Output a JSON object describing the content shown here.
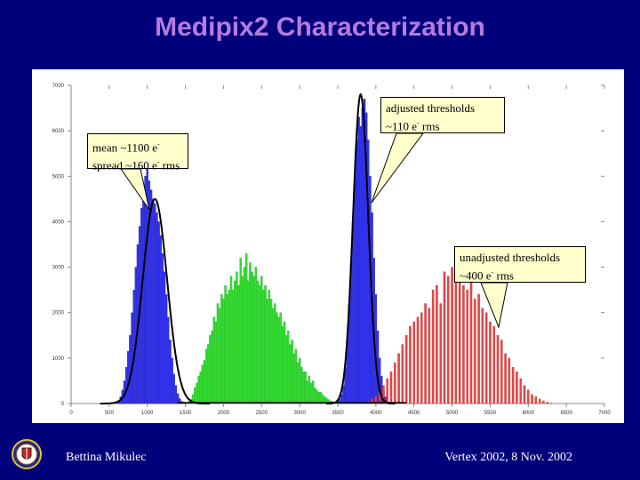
{
  "slide": {
    "title": "Medipix2 Characterization",
    "footer_left": "Bettina Mikulec",
    "footer_right": "Vertex 2002, 8 Nov. 2002"
  },
  "callouts": {
    "mean": {
      "line1": "mean ~1100 e",
      "line2_a": "spread ~160 e",
      "line2_b": " rms"
    },
    "adjusted": {
      "line1": "adjusted thresholds",
      "line2_a": "~110 e",
      "line2_b": " rms"
    },
    "unadjusted": {
      "line1": "unadjusted thresholds",
      "line2_a": "~400 e",
      "line2_b": " rms"
    },
    "minus_sign": "-"
  },
  "chart_data": {
    "type": "bar",
    "title": "",
    "xlabel": "",
    "ylabel": "",
    "xlim": [
      0,
      7000
    ],
    "ylim": [
      0,
      7000
    ],
    "xticks": [
      "0",
      "500",
      "1000",
      "1500",
      "2000",
      "2500",
      "3000",
      "3500",
      "4000",
      "4500",
      "5000",
      "5500",
      "6000",
      "6500",
      "7000"
    ],
    "yticks": [
      "0",
      "1000",
      "2000",
      "3000",
      "4000",
      "5000",
      "6000",
      "7000"
    ],
    "series": [
      {
        "color": "#3333ee",
        "x": [
          600,
          625,
          650,
          675,
          700,
          725,
          750,
          775,
          800,
          825,
          850,
          875,
          900,
          925,
          950,
          975,
          1000,
          1025,
          1050,
          1075,
          1100,
          1125,
          1150,
          1175,
          1200,
          1225,
          1250,
          1275,
          1300,
          1325,
          1350,
          1375,
          1400,
          1425,
          1450,
          1475,
          1500
        ],
        "values": [
          20,
          60,
          150,
          300,
          500,
          800,
          1150,
          1500,
          2000,
          2500,
          3000,
          3500,
          3900,
          4300,
          4700,
          5000,
          5200,
          4900,
          4700,
          4500,
          4400,
          4200,
          4000,
          3700,
          3300,
          2900,
          2400,
          1900,
          1400,
          1000,
          650,
          400,
          220,
          110,
          50,
          20,
          5
        ]
      },
      {
        "color": "#33dd33",
        "x": [
          1550,
          1575,
          1600,
          1625,
          1650,
          1675,
          1700,
          1725,
          1750,
          1775,
          1800,
          1825,
          1850,
          1875,
          1900,
          1925,
          1950,
          1975,
          2000,
          2025,
          2050,
          2075,
          2100,
          2125,
          2150,
          2175,
          2200,
          2225,
          2250,
          2275,
          2300,
          2325,
          2350,
          2375,
          2400,
          2425,
          2450,
          2475,
          2500,
          2525,
          2550,
          2575,
          2600,
          2625,
          2650,
          2675,
          2700,
          2725,
          2750,
          2775,
          2800,
          2825,
          2850,
          2875,
          2900,
          2925,
          2950,
          2975,
          3000,
          3025,
          3050,
          3075,
          3100,
          3125,
          3150,
          3175,
          3200,
          3225,
          3250,
          3275,
          3300,
          3325,
          3350,
          3375,
          3400,
          3425,
          3450,
          3475,
          3500
        ],
        "values": [
          50,
          100,
          200,
          350,
          450,
          600,
          700,
          850,
          950,
          1200,
          1300,
          1500,
          1600,
          1900,
          1800,
          2200,
          2100,
          2400,
          2300,
          2600,
          2400,
          2500,
          2800,
          2500,
          2700,
          2900,
          2600,
          3200,
          2800,
          3000,
          3300,
          2700,
          3100,
          2900,
          2800,
          3000,
          2700,
          2600,
          2800,
          2500,
          2600,
          2300,
          2500,
          2300,
          2100,
          2200,
          2000,
          1900,
          2000,
          1700,
          1800,
          1500,
          1600,
          1300,
          1400,
          1100,
          1200,
          900,
          1000,
          800,
          700,
          700,
          500,
          600,
          450,
          500,
          350,
          300,
          250,
          250,
          200,
          150,
          120,
          90,
          60,
          50,
          30,
          20,
          10
        ]
      },
      {
        "color": "#3333ee",
        "x": [
          3500,
          3525,
          3550,
          3575,
          3600,
          3625,
          3650,
          3675,
          3700,
          3725,
          3750,
          3775,
          3800,
          3825,
          3850,
          3875,
          3900,
          3925,
          3950,
          3975,
          4000,
          4025,
          4050,
          4075,
          4100,
          4125,
          4150,
          4175,
          4200
        ],
        "values": [
          50,
          100,
          200,
          400,
          800,
          1400,
          2200,
          3100,
          4000,
          5000,
          5800,
          6300,
          6100,
          6500,
          6700,
          6400,
          5800,
          5000,
          4200,
          3200,
          2400,
          1600,
          1000,
          600,
          300,
          150,
          70,
          30,
          10
        ]
      },
      {
        "color": "#ee4444",
        "x": [
          3900,
          3950,
          4000,
          4050,
          4100,
          4150,
          4200,
          4250,
          4300,
          4350,
          4400,
          4450,
          4500,
          4550,
          4600,
          4650,
          4700,
          4750,
          4800,
          4850,
          4900,
          4950,
          5000,
          5050,
          5100,
          5150,
          5200,
          5250,
          5300,
          5350,
          5400,
          5450,
          5500,
          5550,
          5600,
          5650,
          5700,
          5750,
          5800,
          5850,
          5900,
          5950,
          6000,
          6050,
          6100,
          6150,
          6200,
          6250,
          6300
        ],
        "values": [
          50,
          100,
          150,
          250,
          400,
          550,
          700,
          900,
          1100,
          1300,
          1500,
          1700,
          1800,
          1900,
          2000,
          2200,
          2100,
          2500,
          2600,
          2200,
          2900,
          2800,
          3000,
          2700,
          2900,
          2600,
          2500,
          2800,
          2300,
          2400,
          2100,
          2000,
          1800,
          1700,
          1500,
          1400,
          1100,
          1000,
          800,
          700,
          550,
          400,
          300,
          200,
          150,
          100,
          60,
          30,
          10
        ]
      }
    ],
    "gaussian_fits": [
      {
        "mean": 1100,
        "sigma": 160,
        "peak": 4500
      },
      {
        "mean": 3800,
        "sigma": 100,
        "peak": 6800
      }
    ]
  }
}
